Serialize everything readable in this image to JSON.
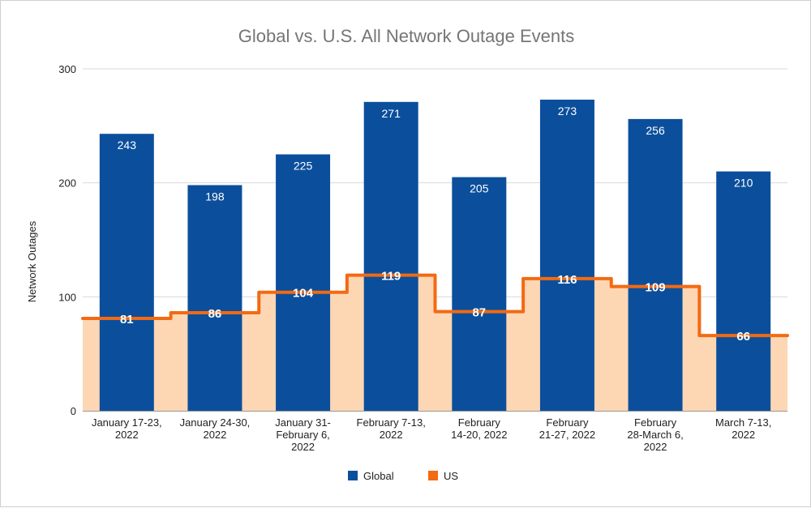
{
  "chart_data": {
    "type": "bar",
    "title": "Global vs. U.S. All Network Outage Events",
    "xlabel": "",
    "ylabel": "Network Outages",
    "ylim": [
      0,
      300
    ],
    "yticks": [
      0,
      100,
      200,
      300
    ],
    "categories": [
      [
        "January 17-23,",
        "2022"
      ],
      [
        "January 24-30,",
        "2022"
      ],
      [
        "January 31-",
        "February 6,",
        "2022"
      ],
      [
        "February 7-13,",
        "2022"
      ],
      [
        "February",
        "14-20, 2022"
      ],
      [
        "February",
        "21-27, 2022"
      ],
      [
        "February",
        "28-March 6,",
        "2022"
      ],
      [
        "March 7-13,",
        "2022"
      ]
    ],
    "series": [
      {
        "name": "Global",
        "type": "bar",
        "color": "#0b4f9c",
        "values": [
          243,
          198,
          225,
          271,
          205,
          273,
          256,
          210
        ]
      },
      {
        "name": "US",
        "type": "stepped-area",
        "color": "#f26a12",
        "fill": "#fdd6b4",
        "values": [
          81,
          86,
          104,
          119,
          87,
          116,
          109,
          66
        ]
      }
    ],
    "legend": {
      "position": "bottom",
      "entries": [
        "Global",
        "US"
      ]
    },
    "grid": true
  }
}
